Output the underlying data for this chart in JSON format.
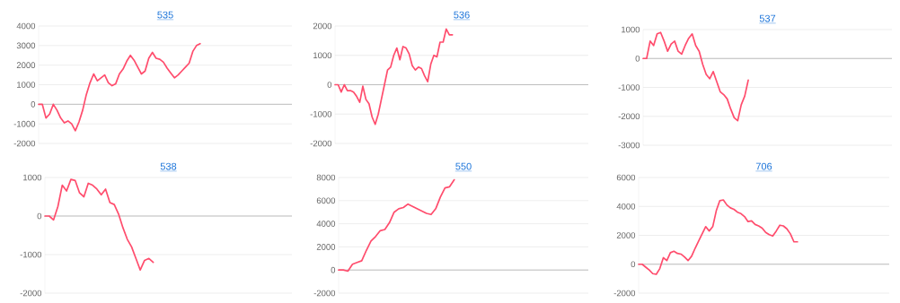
{
  "chart_data": [
    {
      "type": "line",
      "title": "535",
      "categories": [
        null,
        null,
        null,
        null,
        null,
        null,
        null,
        null,
        null,
        null,
        null,
        null,
        null,
        null,
        null,
        null,
        null,
        null,
        null,
        null,
        null,
        null,
        null,
        null,
        null,
        null,
        null,
        null,
        null,
        null,
        null,
        null,
        null,
        null,
        null,
        null,
        null,
        null,
        null,
        null,
        null,
        null,
        null,
        null,
        null,
        null,
        null,
        null,
        null,
        null,
        null,
        null,
        null,
        null,
        null,
        null,
        null,
        null,
        null,
        null,
        null,
        null,
        null,
        null,
        null,
        null,
        null,
        null,
        null,
        null
      ],
      "values": [
        0,
        0,
        -700,
        -500,
        0,
        -300,
        -700,
        -950,
        -850,
        -1000,
        -1350,
        -900,
        -300,
        500,
        1100,
        1550,
        1200,
        1350,
        1500,
        1100,
        950,
        1050,
        1550,
        1800,
        2200,
        2500,
        2250,
        1900,
        1550,
        1700,
        2350,
        2650,
        2350,
        2300,
        2150,
        1850,
        1600,
        1350,
        1500,
        1700,
        1900,
        2100,
        2700,
        3000,
        3100,
        null,
        null,
        null,
        null,
        null,
        null,
        null,
        null,
        null,
        null,
        null,
        null,
        null,
        null,
        null,
        null,
        null,
        null,
        null,
        null,
        null,
        null,
        null,
        null,
        null
      ],
      "color": "#ff4d6d",
      "ylim": [
        -2000,
        4000
      ],
      "yticks": [
        -2000,
        -1000,
        0,
        1000,
        2000,
        3000,
        4000
      ],
      "grid": "y",
      "tick_labels": "y",
      "ref_lines": [
        {
          "axis": "y",
          "value": 0,
          "color": "#aaaaaa"
        }
      ]
    },
    {
      "type": "line",
      "title": "536",
      "categories": [
        null,
        null,
        null,
        null,
        null,
        null,
        null,
        null,
        null,
        null,
        null,
        null,
        null,
        null,
        null,
        null,
        null,
        null,
        null,
        null,
        null,
        null,
        null,
        null,
        null,
        null,
        null,
        null,
        null,
        null,
        null,
        null,
        null,
        null,
        null,
        null,
        null,
        null,
        null,
        null,
        null,
        null,
        null,
        null,
        null,
        null,
        null,
        null,
        null,
        null,
        null,
        null,
        null,
        null,
        null,
        null,
        null,
        null,
        null,
        null,
        null,
        null,
        null,
        null,
        null,
        null,
        null,
        null,
        null,
        null,
        null,
        null,
        null,
        null,
        null,
        null,
        null,
        null,
        null,
        null,
        null,
        null,
        null
      ],
      "values": [
        0,
        0,
        -250,
        0,
        -200,
        -200,
        -250,
        -400,
        -600,
        -50,
        -500,
        -650,
        -1100,
        -1350,
        -1000,
        -500,
        0,
        500,
        600,
        1000,
        1250,
        850,
        1300,
        1250,
        1050,
        650,
        500,
        600,
        550,
        300,
        100,
        700,
        1000,
        950,
        1450,
        1450,
        1900,
        1700,
        1700,
        null,
        null,
        null,
        null,
        null,
        null,
        null,
        null,
        null,
        null,
        null,
        null,
        null,
        null,
        null,
        null,
        null,
        null,
        null,
        null,
        null,
        null,
        null,
        null,
        null,
        null,
        null,
        null,
        null,
        null,
        null,
        null,
        null,
        null,
        null,
        null,
        null,
        null,
        null,
        null,
        null,
        null,
        null,
        null
      ],
      "color": "#ff4d6d",
      "ylim": [
        -2000,
        2000
      ],
      "yticks": [
        -2000,
        -1000,
        0,
        1000,
        2000
      ],
      "grid": "y",
      "tick_labels": "y",
      "ref_lines": [
        {
          "axis": "y",
          "value": 0,
          "color": "#aaaaaa"
        }
      ]
    },
    {
      "type": "line",
      "title": "537",
      "categories": [
        null,
        null,
        null,
        null,
        null,
        null,
        null,
        null,
        null,
        null,
        null,
        null,
        null,
        null,
        null,
        null,
        null,
        null,
        null,
        null,
        null,
        null,
        null,
        null,
        null,
        null,
        null,
        null,
        null,
        null,
        null,
        null,
        null,
        null,
        null,
        null,
        null,
        null,
        null,
        null,
        null,
        null,
        null,
        null,
        null,
        null,
        null,
        null,
        null,
        null,
        null,
        null,
        null,
        null,
        null,
        null,
        null,
        null,
        null,
        null,
        null,
        null,
        null,
        null,
        null,
        null,
        null,
        null,
        null,
        null,
        null,
        null
      ],
      "values": [
        0,
        0,
        600,
        450,
        850,
        900,
        600,
        250,
        500,
        600,
        250,
        150,
        450,
        700,
        850,
        450,
        250,
        -200,
        -550,
        -700,
        -450,
        -800,
        -1150,
        -1250,
        -1400,
        -1750,
        -2050,
        -2150,
        -1600,
        -1300,
        -750,
        null,
        null,
        null,
        null,
        null,
        null,
        null,
        null,
        null,
        null,
        null,
        null,
        null,
        null,
        null,
        null,
        null,
        null,
        null,
        null,
        null,
        null,
        null,
        null,
        null,
        null,
        null,
        null,
        null,
        null,
        null,
        null,
        null,
        null,
        null,
        null,
        null,
        null,
        null,
        null,
        null
      ],
      "color": "#ff4d6d",
      "ylim": [
        -3000,
        1000
      ],
      "yticks": [
        -3000,
        -2000,
        -1000,
        0,
        1000
      ],
      "grid": "y",
      "tick_labels": "y",
      "ref_lines": [
        {
          "axis": "y",
          "value": 0,
          "color": "#aaaaaa"
        }
      ]
    },
    {
      "type": "line",
      "title": "538",
      "categories": [
        null,
        null,
        null,
        null,
        null,
        null,
        null,
        null,
        null,
        null,
        null,
        null,
        null,
        null,
        null,
        null,
        null,
        null,
        null,
        null,
        null,
        null,
        null,
        null,
        null,
        null,
        null,
        null,
        null,
        null,
        null,
        null,
        null,
        null,
        null,
        null,
        null,
        null,
        null,
        null,
        null,
        null,
        null,
        null,
        null,
        null,
        null,
        null,
        null,
        null,
        null,
        null,
        null,
        null,
        null,
        null,
        null,
        null
      ],
      "values": [
        0,
        0,
        -100,
        250,
        800,
        650,
        950,
        920,
        600,
        500,
        850,
        800,
        700,
        550,
        700,
        350,
        300,
        50,
        -300,
        -600,
        -800,
        -1100,
        -1400,
        -1150,
        -1100,
        -1200,
        null,
        null,
        null,
        null,
        null,
        null,
        null,
        null,
        null,
        null,
        null,
        null,
        null,
        null,
        null,
        null,
        null,
        null,
        null,
        null,
        null,
        null,
        null,
        null,
        null,
        null,
        null,
        null,
        null,
        null,
        null,
        null
      ],
      "color": "#ff4d6d",
      "ylim": [
        -2000,
        1000
      ],
      "yticks": [
        -2000,
        -1000,
        0,
        1000
      ],
      "grid": "y",
      "tick_labels": "y",
      "ref_lines": [
        {
          "axis": "y",
          "value": 0,
          "color": "#aaaaaa"
        }
      ]
    },
    {
      "type": "line",
      "title": "550",
      "categories": [
        null,
        null,
        null,
        null,
        null,
        null,
        null,
        null,
        null,
        null,
        null,
        null,
        null,
        null,
        null,
        null,
        null,
        null,
        null,
        null,
        null,
        null,
        null,
        null,
        null,
        null,
        null,
        null,
        null,
        null,
        null,
        null,
        null,
        null,
        null,
        null,
        null,
        null,
        null,
        null,
        null,
        null,
        null,
        null,
        null,
        null,
        null,
        null,
        null,
        null,
        null,
        null,
        null,
        null,
        null
      ],
      "values": [
        0,
        0,
        -100,
        500,
        650,
        800,
        1700,
        2500,
        2900,
        3400,
        3500,
        4100,
        5000,
        5300,
        5400,
        5700,
        5500,
        5300,
        5100,
        4900,
        4800,
        5300,
        6300,
        7100,
        7200,
        7800,
        null,
        null,
        null,
        null,
        null,
        null,
        null,
        null,
        null,
        null,
        null,
        null,
        null,
        null,
        null,
        null,
        null,
        null,
        null,
        null,
        null,
        null,
        null,
        null,
        null,
        null,
        null,
        null,
        null
      ],
      "color": "#ff4d6d",
      "ylim": [
        -2000,
        8000
      ],
      "yticks": [
        -2000,
        0,
        2000,
        4000,
        6000,
        8000
      ],
      "grid": "y",
      "tick_labels": "y",
      "ref_lines": [
        {
          "axis": "y",
          "value": 0,
          "color": "#aaaaaa"
        }
      ]
    },
    {
      "type": "line",
      "title": "706",
      "categories": [
        null,
        null,
        null,
        null,
        null,
        null,
        null,
        null,
        null,
        null,
        null,
        null,
        null,
        null,
        null,
        null,
        null,
        null,
        null,
        null,
        null,
        null,
        null,
        null,
        null,
        null,
        null,
        null,
        null,
        null,
        null,
        null,
        null,
        null,
        null,
        null,
        null,
        null,
        null,
        null,
        null,
        null,
        null,
        null,
        null,
        null,
        null,
        null,
        null,
        null,
        null,
        null,
        null,
        null,
        null,
        null,
        null,
        null,
        null,
        null,
        null,
        null,
        null,
        null,
        null,
        null,
        null,
        null,
        null,
        null,
        null,
        null
      ],
      "values": [
        0,
        0,
        -200,
        -400,
        -650,
        -700,
        -300,
        450,
        250,
        800,
        900,
        750,
        700,
        500,
        250,
        550,
        1100,
        1600,
        2100,
        2600,
        2300,
        2600,
        3700,
        4400,
        4450,
        4100,
        3900,
        3800,
        3600,
        3500,
        3300,
        2950,
        3000,
        2750,
        2650,
        2500,
        2200,
        2050,
        1950,
        2300,
        2700,
        2650,
        2450,
        2100,
        1550,
        1550,
        null,
        null,
        null,
        null,
        null,
        null,
        null,
        null,
        null,
        null,
        null,
        null,
        null,
        null,
        null,
        null,
        null,
        null,
        null,
        null,
        null,
        null,
        null,
        null,
        null,
        null
      ],
      "color": "#ff4d6d",
      "ylim": [
        -2000,
        6000
      ],
      "yticks": [
        -2000,
        0,
        2000,
        4000,
        6000
      ],
      "grid": "y",
      "tick_labels": "y",
      "ref_lines": [
        {
          "axis": "y",
          "value": 0,
          "color": "#aaaaaa"
        }
      ]
    }
  ]
}
